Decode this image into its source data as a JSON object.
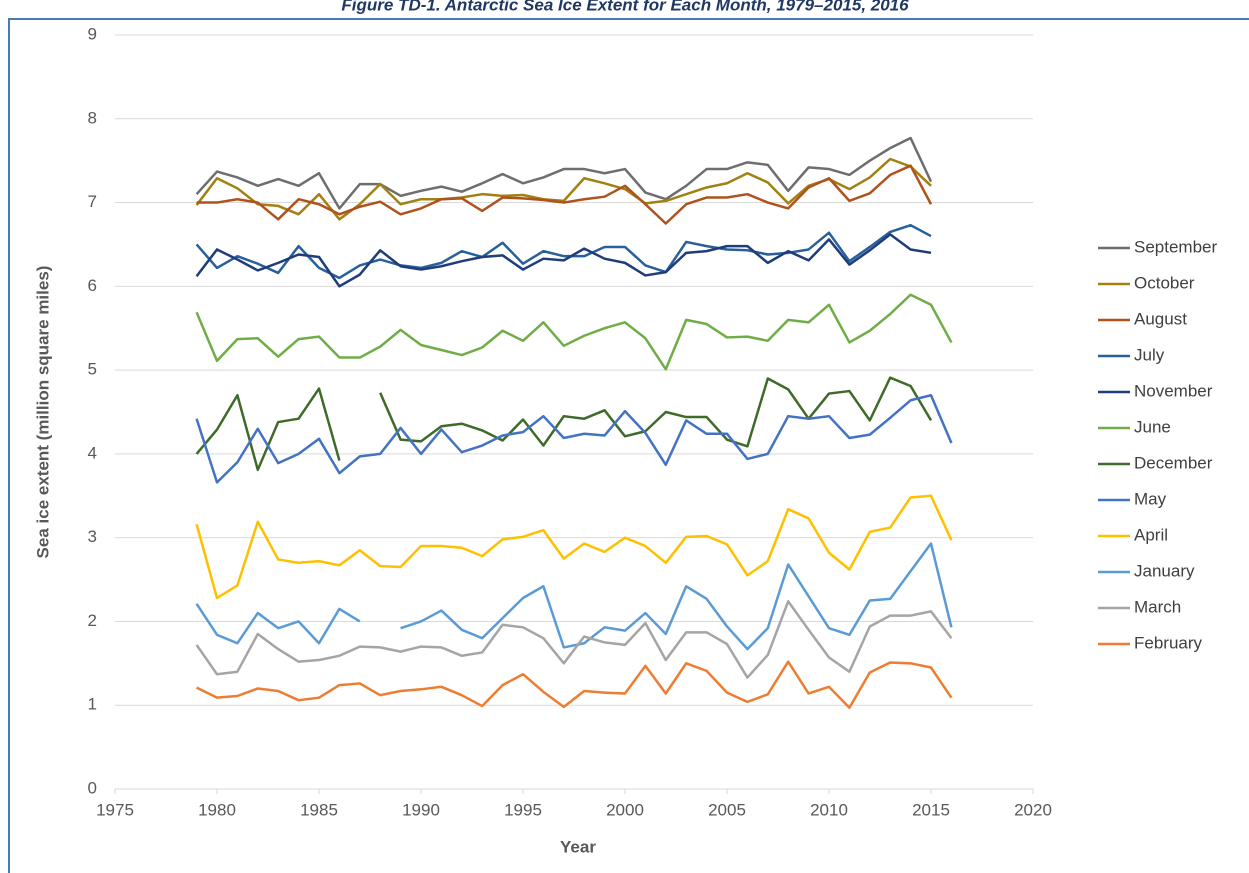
{
  "chart_data": {
    "type": "line",
    "title": "Figure TD-1. Antarctic Sea Ice Extent for Each Month, 1979–2015, 2016",
    "x_label": "Year",
    "y_label": "Sea ice extent (million square miles)",
    "x": [
      1979,
      1980,
      1981,
      1982,
      1983,
      1984,
      1985,
      1986,
      1987,
      1988,
      1989,
      1990,
      1991,
      1992,
      1993,
      1994,
      1995,
      1996,
      1997,
      1998,
      1999,
      2000,
      2001,
      2002,
      2003,
      2004,
      2005,
      2006,
      2007,
      2008,
      2009,
      2010,
      2011,
      2012,
      2013,
      2014,
      2015,
      2016
    ],
    "xlim": [
      1975,
      2020
    ],
    "xticks": [
      1975,
      1980,
      1985,
      1990,
      1995,
      2000,
      2005,
      2010,
      2015,
      2020
    ],
    "ylim": [
      0,
      9
    ],
    "yticks": [
      0,
      1,
      2,
      3,
      4,
      5,
      6,
      7,
      8,
      9
    ],
    "grid": true,
    "legend": "right",
    "series": [
      {
        "name": "September",
        "color": "#6e6e6e",
        "values": [
          7.1,
          7.37,
          7.3,
          7.2,
          7.28,
          7.2,
          7.35,
          6.93,
          7.22,
          7.22,
          7.08,
          7.14,
          7.19,
          7.13,
          7.23,
          7.34,
          7.23,
          7.3,
          7.4,
          7.4,
          7.35,
          7.4,
          7.12,
          7.04,
          7.2,
          7.4,
          7.4,
          7.48,
          7.45,
          7.14,
          7.42,
          7.4,
          7.33,
          7.5,
          7.65,
          7.77,
          7.25,
          null
        ]
      },
      {
        "name": "October",
        "color": "#a38012",
        "values": [
          6.97,
          7.29,
          7.17,
          6.98,
          6.96,
          6.86,
          7.1,
          6.8,
          6.98,
          7.22,
          6.98,
          7.04,
          7.04,
          7.06,
          7.1,
          7.08,
          7.09,
          7.04,
          7.02,
          7.29,
          7.23,
          7.16,
          6.99,
          7.02,
          7.1,
          7.18,
          7.23,
          7.35,
          7.24,
          6.99,
          7.2,
          7.28,
          7.16,
          7.3,
          7.52,
          7.43,
          7.2,
          null
        ]
      },
      {
        "name": "August",
        "color": "#b0521e",
        "values": [
          7.0,
          7.0,
          7.04,
          7.0,
          6.8,
          7.04,
          6.98,
          6.86,
          6.95,
          7.01,
          6.86,
          6.93,
          7.04,
          7.05,
          6.9,
          7.06,
          7.05,
          7.03,
          7.0,
          7.04,
          7.07,
          7.2,
          6.98,
          6.75,
          6.98,
          7.06,
          7.06,
          7.1,
          7.0,
          6.93,
          7.18,
          7.29,
          7.02,
          7.11,
          7.33,
          7.44,
          6.98,
          null
        ]
      },
      {
        "name": "July",
        "color": "#28609c",
        "values": [
          6.5,
          6.22,
          6.36,
          6.27,
          6.16,
          6.48,
          6.22,
          6.1,
          6.25,
          6.32,
          6.25,
          6.22,
          6.28,
          6.42,
          6.35,
          6.52,
          6.27,
          6.42,
          6.36,
          6.36,
          6.47,
          6.47,
          6.25,
          6.17,
          6.53,
          6.48,
          6.44,
          6.43,
          6.38,
          6.4,
          6.44,
          6.64,
          6.3,
          6.47,
          6.65,
          6.73,
          6.6,
          null
        ]
      },
      {
        "name": "November",
        "color": "#1f3d7a",
        "values": [
          6.12,
          6.44,
          6.32,
          6.19,
          6.28,
          6.38,
          6.35,
          6.0,
          6.14,
          6.43,
          6.24,
          6.2,
          6.24,
          6.3,
          6.35,
          6.37,
          6.2,
          6.33,
          6.31,
          6.45,
          6.33,
          6.28,
          6.13,
          6.17,
          6.4,
          6.42,
          6.48,
          6.48,
          6.28,
          6.42,
          6.31,
          6.56,
          6.26,
          6.43,
          6.62,
          6.44,
          6.4,
          null
        ]
      },
      {
        "name": "June",
        "color": "#70ad47",
        "values": [
          5.69,
          5.11,
          5.37,
          5.38,
          5.16,
          5.37,
          5.4,
          5.15,
          5.15,
          5.28,
          5.48,
          5.3,
          5.24,
          5.18,
          5.27,
          5.47,
          5.35,
          5.57,
          5.29,
          5.41,
          5.5,
          5.57,
          5.38,
          5.01,
          5.6,
          5.55,
          5.39,
          5.4,
          5.35,
          5.6,
          5.57,
          5.78,
          5.33,
          5.47,
          5.67,
          5.9,
          5.78,
          5.33
        ]
      },
      {
        "name": "December",
        "color": "#3f6b2a",
        "values": [
          4.0,
          4.29,
          4.7,
          3.81,
          4.38,
          4.42,
          4.78,
          3.92,
          null,
          4.73,
          4.17,
          4.15,
          4.33,
          4.36,
          4.28,
          4.16,
          4.41,
          4.1,
          4.45,
          4.42,
          4.52,
          4.21,
          4.27,
          4.5,
          4.44,
          4.44,
          4.17,
          4.09,
          4.9,
          4.77,
          4.42,
          4.72,
          4.75,
          4.4,
          4.91,
          4.81,
          4.4,
          null
        ]
      },
      {
        "name": "May",
        "color": "#4472c4",
        "values": [
          4.42,
          3.66,
          3.9,
          4.3,
          3.89,
          4.0,
          4.18,
          3.77,
          3.97,
          4.0,
          4.31,
          4.0,
          4.29,
          4.02,
          4.1,
          4.22,
          4.26,
          4.45,
          4.19,
          4.24,
          4.22,
          4.51,
          4.25,
          3.87,
          4.4,
          4.24,
          4.24,
          3.94,
          4.0,
          4.45,
          4.42,
          4.45,
          4.19,
          4.23,
          4.43,
          4.64,
          4.7,
          4.13
        ]
      },
      {
        "name": "April",
        "color": "#ffc000",
        "values": [
          3.16,
          2.28,
          2.43,
          3.19,
          2.74,
          2.7,
          2.72,
          2.67,
          2.85,
          2.66,
          2.65,
          2.9,
          2.9,
          2.88,
          2.78,
          2.98,
          3.01,
          3.09,
          2.75,
          2.93,
          2.83,
          3.0,
          2.9,
          2.7,
          3.01,
          3.02,
          2.92,
          2.55,
          2.72,
          3.34,
          3.23,
          2.82,
          2.62,
          3.07,
          3.12,
          3.48,
          3.5,
          2.97
        ]
      },
      {
        "name": "January",
        "color": "#5b9bd5",
        "values": [
          2.21,
          1.84,
          1.74,
          2.1,
          1.92,
          2.0,
          1.74,
          2.15,
          2.0,
          null,
          1.92,
          2.0,
          2.13,
          1.9,
          1.8,
          2.04,
          2.28,
          2.42,
          1.69,
          1.74,
          1.93,
          1.89,
          2.1,
          1.85,
          2.42,
          2.27,
          1.94,
          1.67,
          1.92,
          2.68,
          2.3,
          1.92,
          1.84,
          2.25,
          2.27,
          2.6,
          2.93,
          1.93
        ]
      },
      {
        "name": "March",
        "color": "#a5a5a5",
        "values": [
          1.72,
          1.37,
          1.4,
          1.85,
          1.67,
          1.52,
          1.54,
          1.59,
          1.7,
          1.69,
          1.64,
          1.7,
          1.69,
          1.59,
          1.63,
          1.96,
          1.93,
          1.8,
          1.5,
          1.82,
          1.75,
          1.72,
          1.98,
          1.54,
          1.87,
          1.87,
          1.73,
          1.33,
          1.6,
          2.24,
          1.9,
          1.57,
          1.4,
          1.94,
          2.07,
          2.07,
          2.12,
          1.8
        ]
      },
      {
        "name": "February",
        "color": "#ed7d31",
        "values": [
          1.21,
          1.09,
          1.11,
          1.2,
          1.17,
          1.06,
          1.09,
          1.24,
          1.26,
          1.12,
          1.17,
          1.19,
          1.22,
          1.12,
          0.99,
          1.24,
          1.37,
          1.16,
          0.98,
          1.17,
          1.15,
          1.14,
          1.47,
          1.14,
          1.5,
          1.41,
          1.15,
          1.04,
          1.13,
          1.52,
          1.14,
          1.22,
          0.97,
          1.39,
          1.51,
          1.5,
          1.45,
          1.09
        ]
      }
    ]
  }
}
